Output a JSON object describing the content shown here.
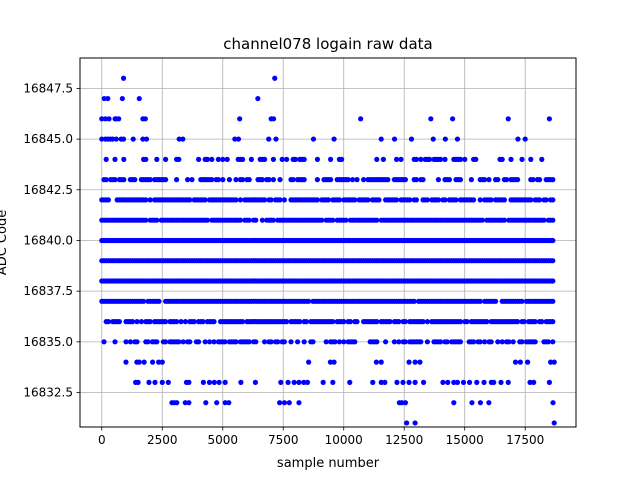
{
  "chart_data": {
    "type": "scatter",
    "title": "channel078 logain raw data",
    "xlabel": "sample number",
    "ylabel": "ADC Code",
    "xlim": [
      -900,
      19600
    ],
    "ylim": [
      16830.8,
      16849.0
    ],
    "xticks": [
      0,
      2500,
      5000,
      7500,
      10000,
      12500,
      15000,
      17500
    ],
    "xtick_labels": [
      "0",
      "2500",
      "5000",
      "7500",
      "10000",
      "12500",
      "15000",
      "17500"
    ],
    "yticks": [
      16832.5,
      16835.0,
      16837.5,
      16840.0,
      16842.5,
      16845.0,
      16847.5
    ],
    "ytick_labels": [
      "16832.5",
      "16835.0",
      "16837.5",
      "16840.0",
      "16842.5",
      "16845.0",
      "16847.5"
    ],
    "grid": true,
    "marker_color": "#0000ff",
    "series": [
      {
        "name": "",
        "n_samples": 18700,
        "code_levels": [
          {
            "code": 16848,
            "x": [
              900,
              7150
            ]
          },
          {
            "code": 16847,
            "x": [
              100,
              250,
              850,
              1550,
              6450
            ]
          },
          {
            "code": 16846,
            "x": [
              0,
              150,
              300,
              550,
              600,
              700,
              1700,
              1800,
              5700,
              7000,
              7100,
              10700,
              13600,
              14500,
              16800,
              18500
            ]
          },
          {
            "code": 16845,
            "x": [
              0,
              150,
              250,
              350,
              450,
              600,
              800,
              900,
              1300,
              1700,
              1850,
              3200,
              3350,
              5500,
              5650,
              6900,
              7200,
              8750,
              9600,
              11550,
              12100,
              12800,
              13700,
              14200,
              14700,
              17200,
              17500
            ]
          },
          {
            "code": 16834,
            "x": [
              1000,
              1450,
              1550,
              1750,
              2100,
              2350,
              2500,
              8550,
              9450,
              9600,
              11350,
              11550,
              12700,
              12950,
              13150,
              17100,
              17300,
              17600,
              18550,
              18700
            ]
          },
          {
            "code": 16833,
            "x": [
              1400,
              1500,
              1950,
              2200,
              2500,
              2750,
              3500,
              3600,
              4200,
              4450,
              4650,
              4850,
              5100,
              5750,
              6350,
              7400,
              7700,
              7950,
              8150,
              8350,
              8500,
              9150,
              9550,
              10250,
              11200,
              11550,
              11700,
              12200,
              12450,
              12700,
              12950,
              13300,
              14100,
              14300,
              14550,
              14700,
              14950,
              15200,
              15500,
              15800,
              16100,
              16200,
              16500,
              16800,
              17700,
              17850,
              18500
            ]
          },
          {
            "code": 16832,
            "x": [
              2900,
              3000,
              3100,
              3450,
              3600,
              4300,
              4750,
              5100,
              5250,
              7350,
              7550,
              7750,
              8150,
              12300,
              12400,
              12550,
              14550,
              15300,
              15650,
              16000,
              18650
            ]
          },
          {
            "code": 16831,
            "x": [
              12600,
              12950,
              18700
            ]
          }
        ],
        "dense_code_range": [
          16835,
          16844
        ],
        "dense_x_range": [
          0,
          18700
        ]
      }
    ]
  }
}
